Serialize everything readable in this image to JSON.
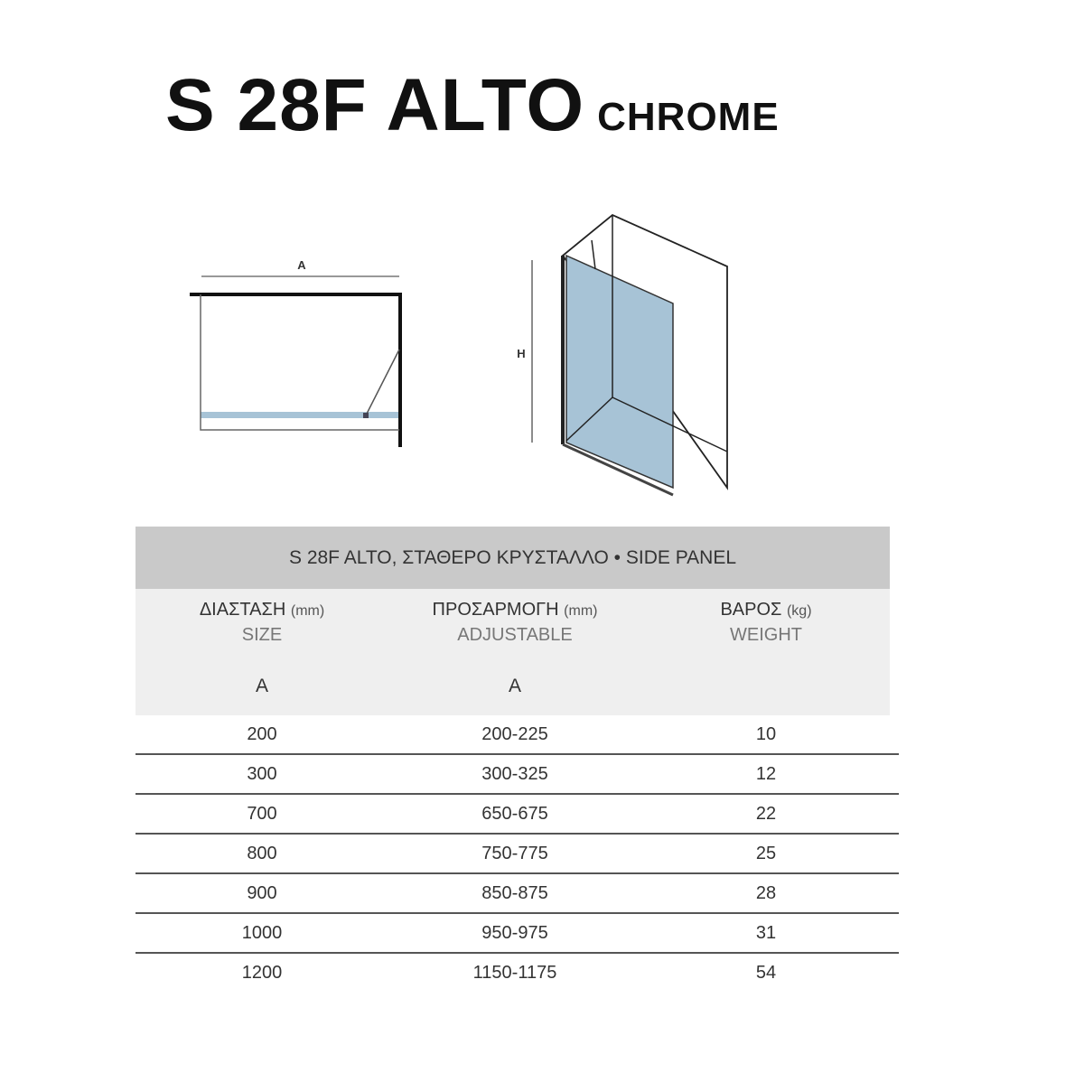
{
  "title": {
    "model": "S 28F ALTO",
    "finish": "CHROME"
  },
  "diagrams": {
    "plan_label": "A",
    "elevation_label": "H",
    "glass_color": "#a7c3d6"
  },
  "table": {
    "caption": "S 28F ALTO, ΣΤΑΘΕΡΟ ΚΡΥΣΤΑΛΛΟ • SIDE PANEL",
    "columns": [
      {
        "greek": "ΔΙΑΣΤΑΣΗ",
        "unit": "(mm)",
        "english": "SIZE",
        "dim": "A"
      },
      {
        "greek": "ΠΡΟΣΑΡΜΟΓΗ",
        "unit": "(mm)",
        "english": "ADJUSTABLE",
        "dim": "A"
      },
      {
        "greek": "ΒΑΡΟΣ",
        "unit": "(kg)",
        "english": "WEIGHT",
        "dim": ""
      }
    ],
    "rows": [
      [
        "200",
        "200-225",
        "10"
      ],
      [
        "300",
        "300-325",
        "12"
      ],
      [
        "700",
        "650-675",
        "22"
      ],
      [
        "800",
        "750-775",
        "25"
      ],
      [
        "900",
        "850-875",
        "28"
      ],
      [
        "1000",
        "950-975",
        "31"
      ],
      [
        "1200",
        "1150-1175",
        "54"
      ]
    ]
  }
}
